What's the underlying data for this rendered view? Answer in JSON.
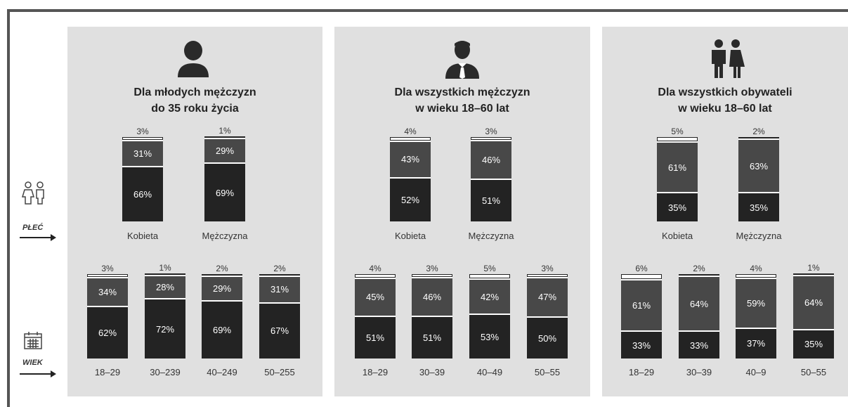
{
  "side": {
    "gender_label": "PŁEĆ",
    "age_label": "WIEK"
  },
  "colors": {
    "panel_bg": "#e0e0e0",
    "dark_segment": "#232323",
    "mid_segment": "#484848",
    "top_segment": "#ffffff"
  },
  "chart_data": [
    {
      "type": "bar",
      "title": "Dla młodych mężczyzn do 35 roku życia",
      "title_lines": [
        "Dla młodych mężczyzn",
        "do 35 roku życia"
      ],
      "icon": "young-man-icon",
      "gender": {
        "categories": [
          "Kobieta",
          "Mężczyzna"
        ],
        "values": [
          [
            66,
            31,
            3
          ],
          [
            69,
            29,
            1
          ]
        ]
      },
      "age": {
        "categories": [
          "18–29",
          "30–239",
          "40–249",
          "50–255"
        ],
        "values": [
          [
            62,
            34,
            3
          ],
          [
            72,
            28,
            1
          ],
          [
            69,
            29,
            2
          ],
          [
            67,
            31,
            2
          ]
        ]
      }
    },
    {
      "type": "bar",
      "title": "Dla wszystkich mężczyzn w wieku 18–60 lat",
      "title_lines": [
        "Dla wszystkich mężczyzn",
        "w wieku 18–60 lat"
      ],
      "icon": "businessman-icon",
      "gender": {
        "categories": [
          "Kobieta",
          "Mężczyzna"
        ],
        "values": [
          [
            52,
            43,
            4
          ],
          [
            51,
            46,
            3
          ]
        ]
      },
      "age": {
        "categories": [
          "18–29",
          "30–39",
          "40–49",
          "50–55"
        ],
        "values": [
          [
            51,
            45,
            4
          ],
          [
            51,
            46,
            3
          ],
          [
            53,
            42,
            5
          ],
          [
            50,
            47,
            3
          ]
        ]
      }
    },
    {
      "type": "bar",
      "title": "Dla wszystkich obywateli w wieku 18–60 lat",
      "title_lines": [
        "Dla wszystkich obywateli",
        "w wieku 18–60 lat"
      ],
      "icon": "couple-icon",
      "gender": {
        "categories": [
          "Kobieta",
          "Mężczyzna"
        ],
        "values": [
          [
            35,
            61,
            5
          ],
          [
            35,
            63,
            2
          ]
        ]
      },
      "age": {
        "categories": [
          "18–29",
          "30–39",
          "40–9",
          "50–55"
        ],
        "values": [
          [
            33,
            61,
            6
          ],
          [
            33,
            64,
            2
          ],
          [
            37,
            59,
            4
          ],
          [
            35,
            64,
            1
          ]
        ]
      }
    }
  ]
}
